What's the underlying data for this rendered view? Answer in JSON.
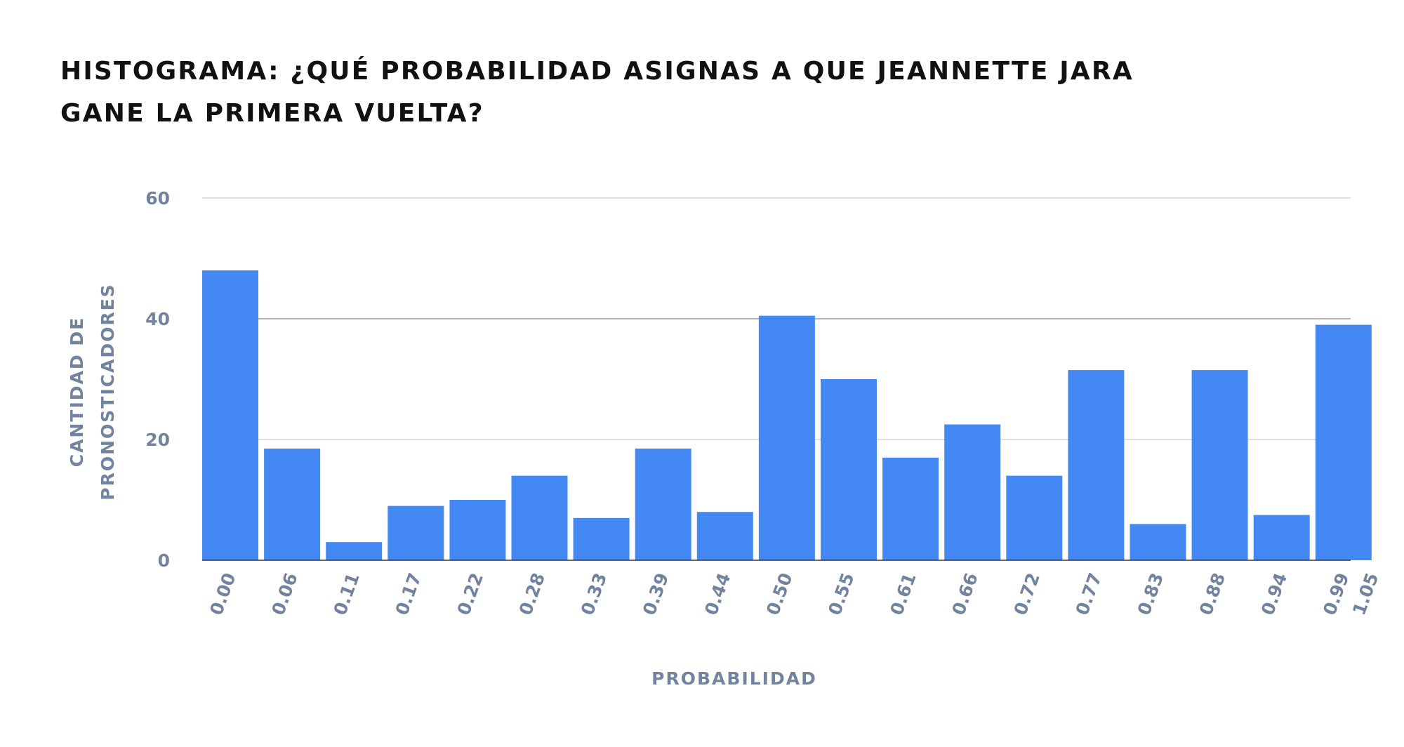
{
  "title": {
    "line1": "HISTOGRAMA: ¿QUÉ PROBABILIDAD ASIGNAS A QUE JEANNETTE JARA",
    "line2": "GANE LA PRIMERA VUELTA?"
  },
  "chart_data": {
    "type": "bar",
    "title": "HISTOGRAMA: ¿QUÉ PROBABILIDAD ASIGNAS A QUE JEANNETTE JARA GANE LA PRIMERA VUELTA?",
    "xlabel": "PROBABILIDAD",
    "ylabel_lines": [
      "CANTIDAD DE",
      "PRONOSTICADORES"
    ],
    "categories": [
      "0.00",
      "0.06",
      "0.11",
      "0.17",
      "0.22",
      "0.28",
      "0.33",
      "0.39",
      "0.44",
      "0.50",
      "0.55",
      "0.61",
      "0.66",
      "0.72",
      "0.77",
      "0.83",
      "0.88",
      "0.94",
      "0.99"
    ],
    "x_tick_labels": [
      "0.00",
      "0.06",
      "0.11",
      "0.17",
      "0.22",
      "0.28",
      "0.33",
      "0.39",
      "0.44",
      "0.50",
      "0.55",
      "0.61",
      "0.66",
      "0.72",
      "0.77",
      "0.83",
      "0.88",
      "0.94",
      "0.99",
      "1.05"
    ],
    "values": [
      48,
      18.5,
      3,
      9,
      10,
      14,
      7,
      18.5,
      8,
      40.5,
      30,
      17,
      22.5,
      14,
      31.5,
      6,
      31.5,
      7.5,
      39
    ],
    "ylim": [
      0,
      60
    ],
    "y_ticks": [
      0,
      20,
      40,
      60
    ],
    "grid": true,
    "legend": "none",
    "colors": {
      "bar": "#4488f4",
      "grid": "#cccccc",
      "axis_text": "#7283a0",
      "title": "#111111"
    }
  }
}
